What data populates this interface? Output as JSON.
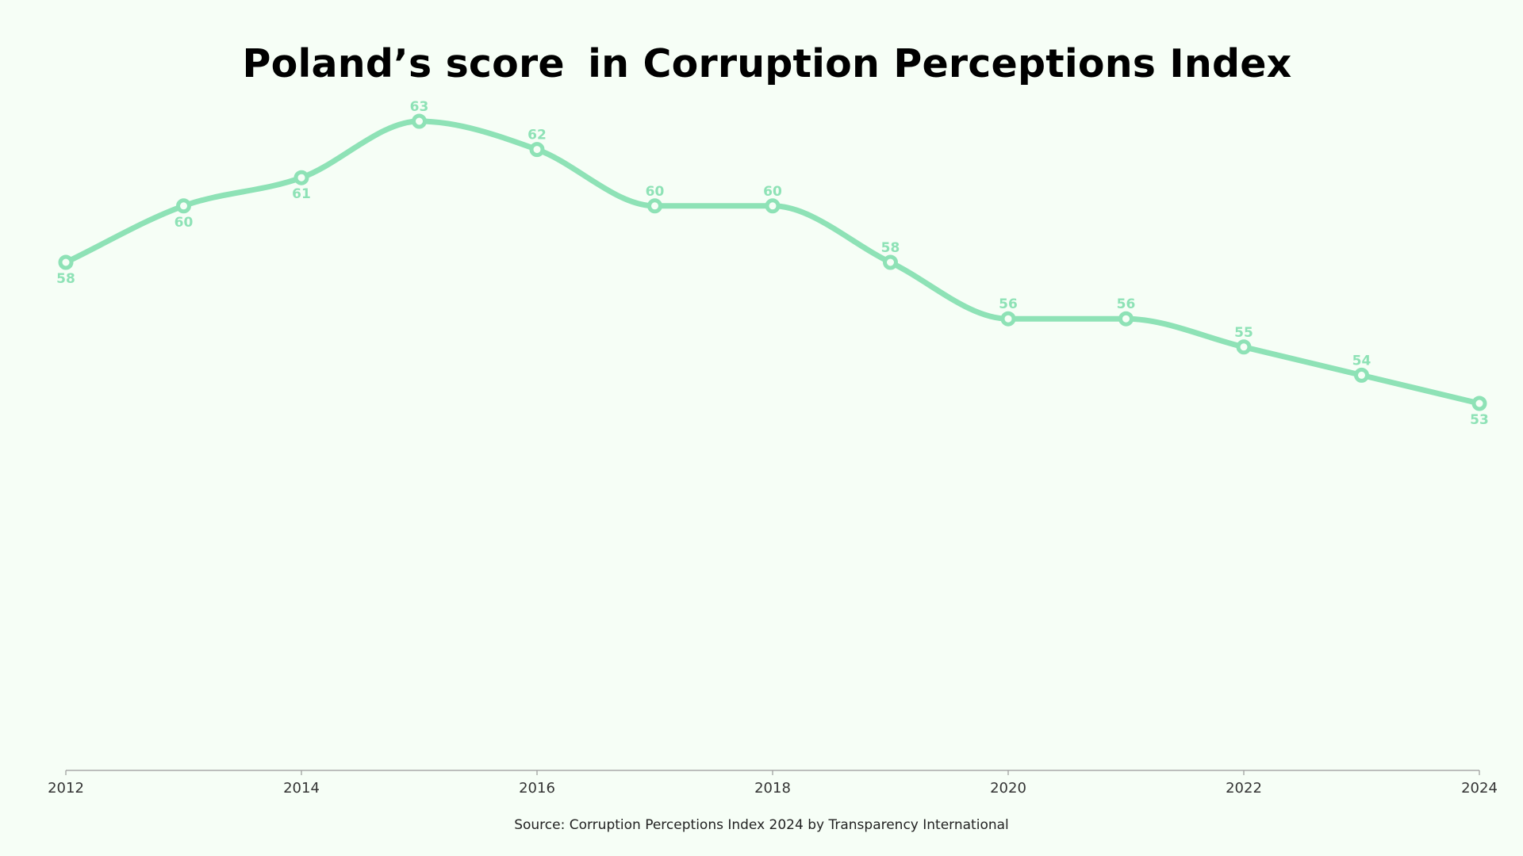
{
  "title": {
    "highlight": "Poland’s score",
    "rest": " in Corruption Perceptions Index"
  },
  "source": "Source: Corruption Perceptions Index 2024 by Transparency International",
  "colors": {
    "line": "#8ee2b6",
    "label": "#8ee2b6",
    "background": "#f6fef6",
    "axis": "#999999"
  },
  "chart_data": {
    "type": "line",
    "x": [
      2012,
      2013,
      2014,
      2015,
      2016,
      2017,
      2018,
      2019,
      2020,
      2021,
      2022,
      2023,
      2024
    ],
    "series": [
      {
        "values": [
          58,
          60,
          61,
          63,
          62,
          60,
          60,
          58,
          56,
          56,
          55,
          54,
          53
        ],
        "label_positions": [
          "below",
          "below",
          "below",
          "above",
          "above",
          "above",
          "above",
          "above",
          "above",
          "above",
          "above",
          "above",
          "below"
        ]
      }
    ],
    "x_tick_labels": [
      "2012",
      "2014",
      "2016",
      "2018",
      "2020",
      "2022",
      "2024"
    ],
    "ylim": [
      35,
      65
    ],
    "xlabel": "",
    "ylabel": "",
    "grid": false,
    "y_axis_visible": false,
    "curve": "smooth",
    "data_labels": true
  }
}
